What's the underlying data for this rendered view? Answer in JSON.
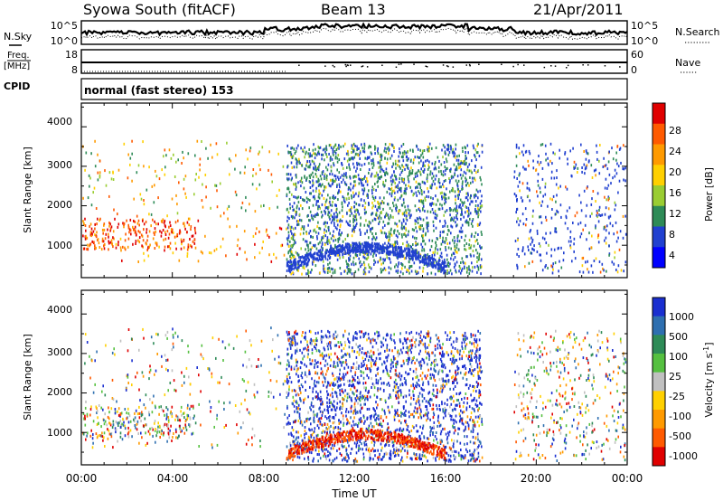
{
  "header": {
    "station": "Syowa South (fitACF)",
    "beam": "Beam 13",
    "date": "21/Apr/2011"
  },
  "nsky_panel": {
    "left_label": "N.Sky",
    "right_label": "N.Search",
    "ticks_left": [
      "10^5",
      "10^0"
    ],
    "ticks_right": [
      "10^5",
      "10^0"
    ]
  },
  "freq_panel": {
    "left_label_top": "Freq.",
    "left_label_unit": "[MHz]",
    "right_label": "Nave",
    "ticks_left": [
      "18",
      "8"
    ],
    "ticks_right": [
      "60",
      "0"
    ]
  },
  "cpid": {
    "label": "CPID",
    "mode": "normal (fast stereo) 153"
  },
  "range_axis": {
    "label": "Slant Range [km]",
    "ticks": [
      "4000",
      "3000",
      "2000",
      "1000"
    ]
  },
  "time_axis": {
    "label": "Time UT",
    "ticks": [
      "00:00",
      "04:00",
      "08:00",
      "12:00",
      "16:00",
      "20:00",
      "00:00"
    ]
  },
  "power_scale": {
    "label": "Power [dB]",
    "ticks": [
      "28",
      "24",
      "20",
      "16",
      "12",
      "8",
      "4"
    ],
    "colors": [
      "#e00000",
      "#ff5a00",
      "#ff9a00",
      "#ffd000",
      "#9acd32",
      "#2e8b57",
      "#2040d0",
      "#0000ff"
    ]
  },
  "velocity_scale": {
    "label": "Velocity [m s",
    "label_sup": "-1",
    "label_end": "]",
    "ticks": [
      "1000",
      "500",
      "100",
      "25",
      "-25",
      "-100",
      "-500",
      "-1000"
    ],
    "colors": [
      "#1a2fd0",
      "#2e6fb0",
      "#2e8b57",
      "#55c040",
      "#c0c0c0",
      "#ffd000",
      "#ff9a00",
      "#ff5a00",
      "#e00000"
    ]
  },
  "chart_data": [
    {
      "type": "heatmap",
      "title": "Power",
      "xlabel": "Time UT",
      "ylabel": "Slant Range [km]",
      "xlim": [
        "00:00",
        "24:00"
      ],
      "ylim": [
        180,
        4600
      ],
      "colorbar": "Power [dB]",
      "colorbar_range": [
        0,
        30
      ]
    },
    {
      "type": "heatmap",
      "title": "Velocity",
      "xlabel": "Time UT",
      "ylabel": "Slant Range [km]",
      "xlim": [
        "00:00",
        "24:00"
      ],
      "ylim": [
        180,
        4600
      ],
      "colorbar": "Velocity [m s-1]",
      "colorbar_range": [
        -1000,
        1000
      ]
    }
  ]
}
